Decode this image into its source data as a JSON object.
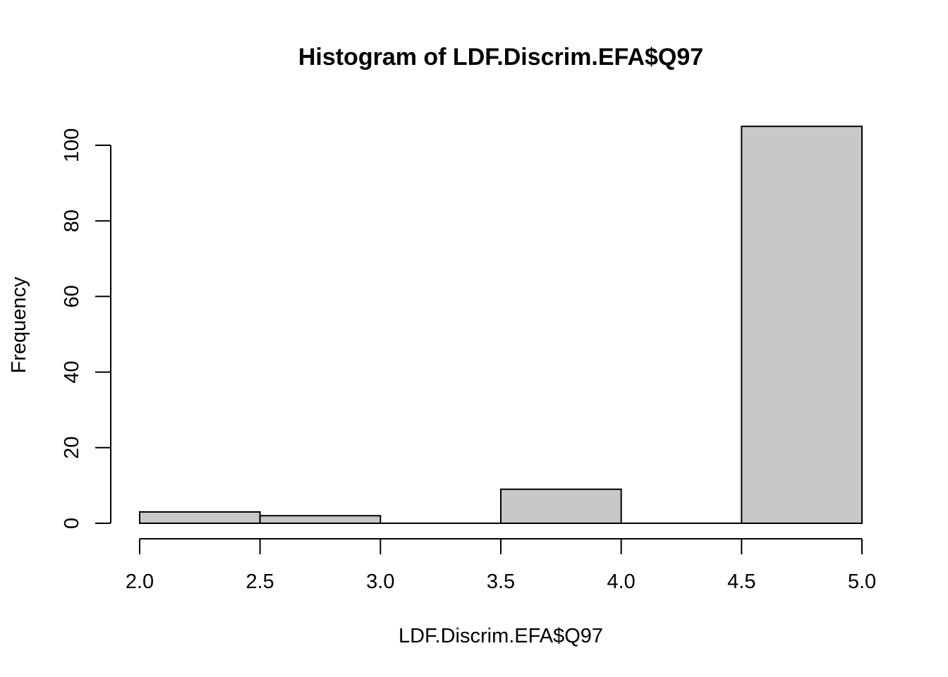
{
  "chart_data": {
    "type": "bar",
    "title": "Histogram of LDF.Discrim.EFA$Q97",
    "xlabel": "LDF.Discrim.EFA$Q97",
    "ylabel": "Frequency",
    "bins": [
      {
        "start": 2.0,
        "end": 2.5,
        "count": 3
      },
      {
        "start": 2.5,
        "end": 3.0,
        "count": 2
      },
      {
        "start": 3.0,
        "end": 3.5,
        "count": 0
      },
      {
        "start": 3.5,
        "end": 4.0,
        "count": 9
      },
      {
        "start": 4.0,
        "end": 4.5,
        "count": 0
      },
      {
        "start": 4.5,
        "end": 5.0,
        "count": 105
      }
    ],
    "x_ticks": [
      "2.0",
      "2.5",
      "3.0",
      "3.5",
      "4.0",
      "4.5",
      "5.0"
    ],
    "y_ticks": [
      "0",
      "20",
      "40",
      "60",
      "80",
      "100"
    ],
    "xlim": [
      2.0,
      5.0
    ],
    "ylim": [
      0,
      105
    ],
    "bar_fill": "#c8c8c8",
    "bar_stroke": "#000000",
    "grid": false,
    "legend": "none"
  }
}
